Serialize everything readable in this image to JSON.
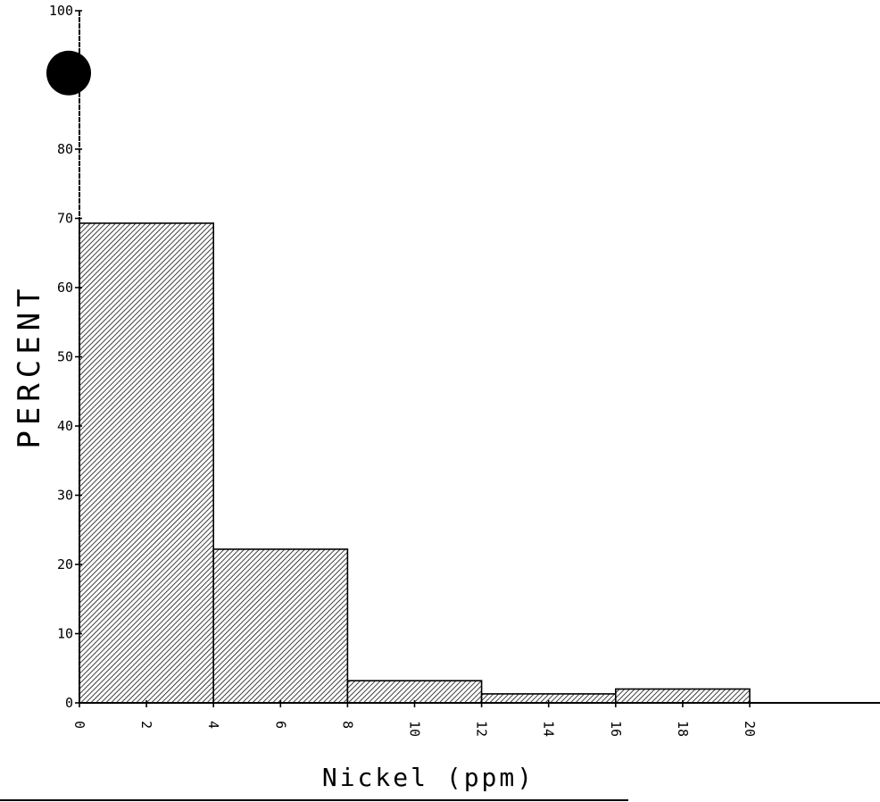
{
  "chart_data": {
    "type": "bar",
    "title": "",
    "xlabel": "Nickel (ppm)",
    "ylabel": "PERCENT",
    "xlim": [
      0,
      20
    ],
    "ylim": [
      0,
      100
    ],
    "x_ticks": [
      "0",
      "2",
      "4",
      "6",
      "8",
      "10",
      "12",
      "14",
      "16",
      "18",
      "20"
    ],
    "y_ticks": [
      "0",
      "10",
      "20",
      "30",
      "40",
      "50",
      "60",
      "70",
      "80",
      "100"
    ],
    "bins": [
      {
        "from": 0,
        "to": 4,
        "value": 69.3
      },
      {
        "from": 4,
        "to": 8,
        "value": 22.2
      },
      {
        "from": 8,
        "to": 12,
        "value": 3.2
      },
      {
        "from": 12,
        "to": 16,
        "value": 1.3
      },
      {
        "from": 16,
        "to": 20,
        "value": 2.0
      }
    ],
    "marker": {
      "x": 0,
      "y": 91
    },
    "bar_fill": "hatched",
    "grid": false
  }
}
